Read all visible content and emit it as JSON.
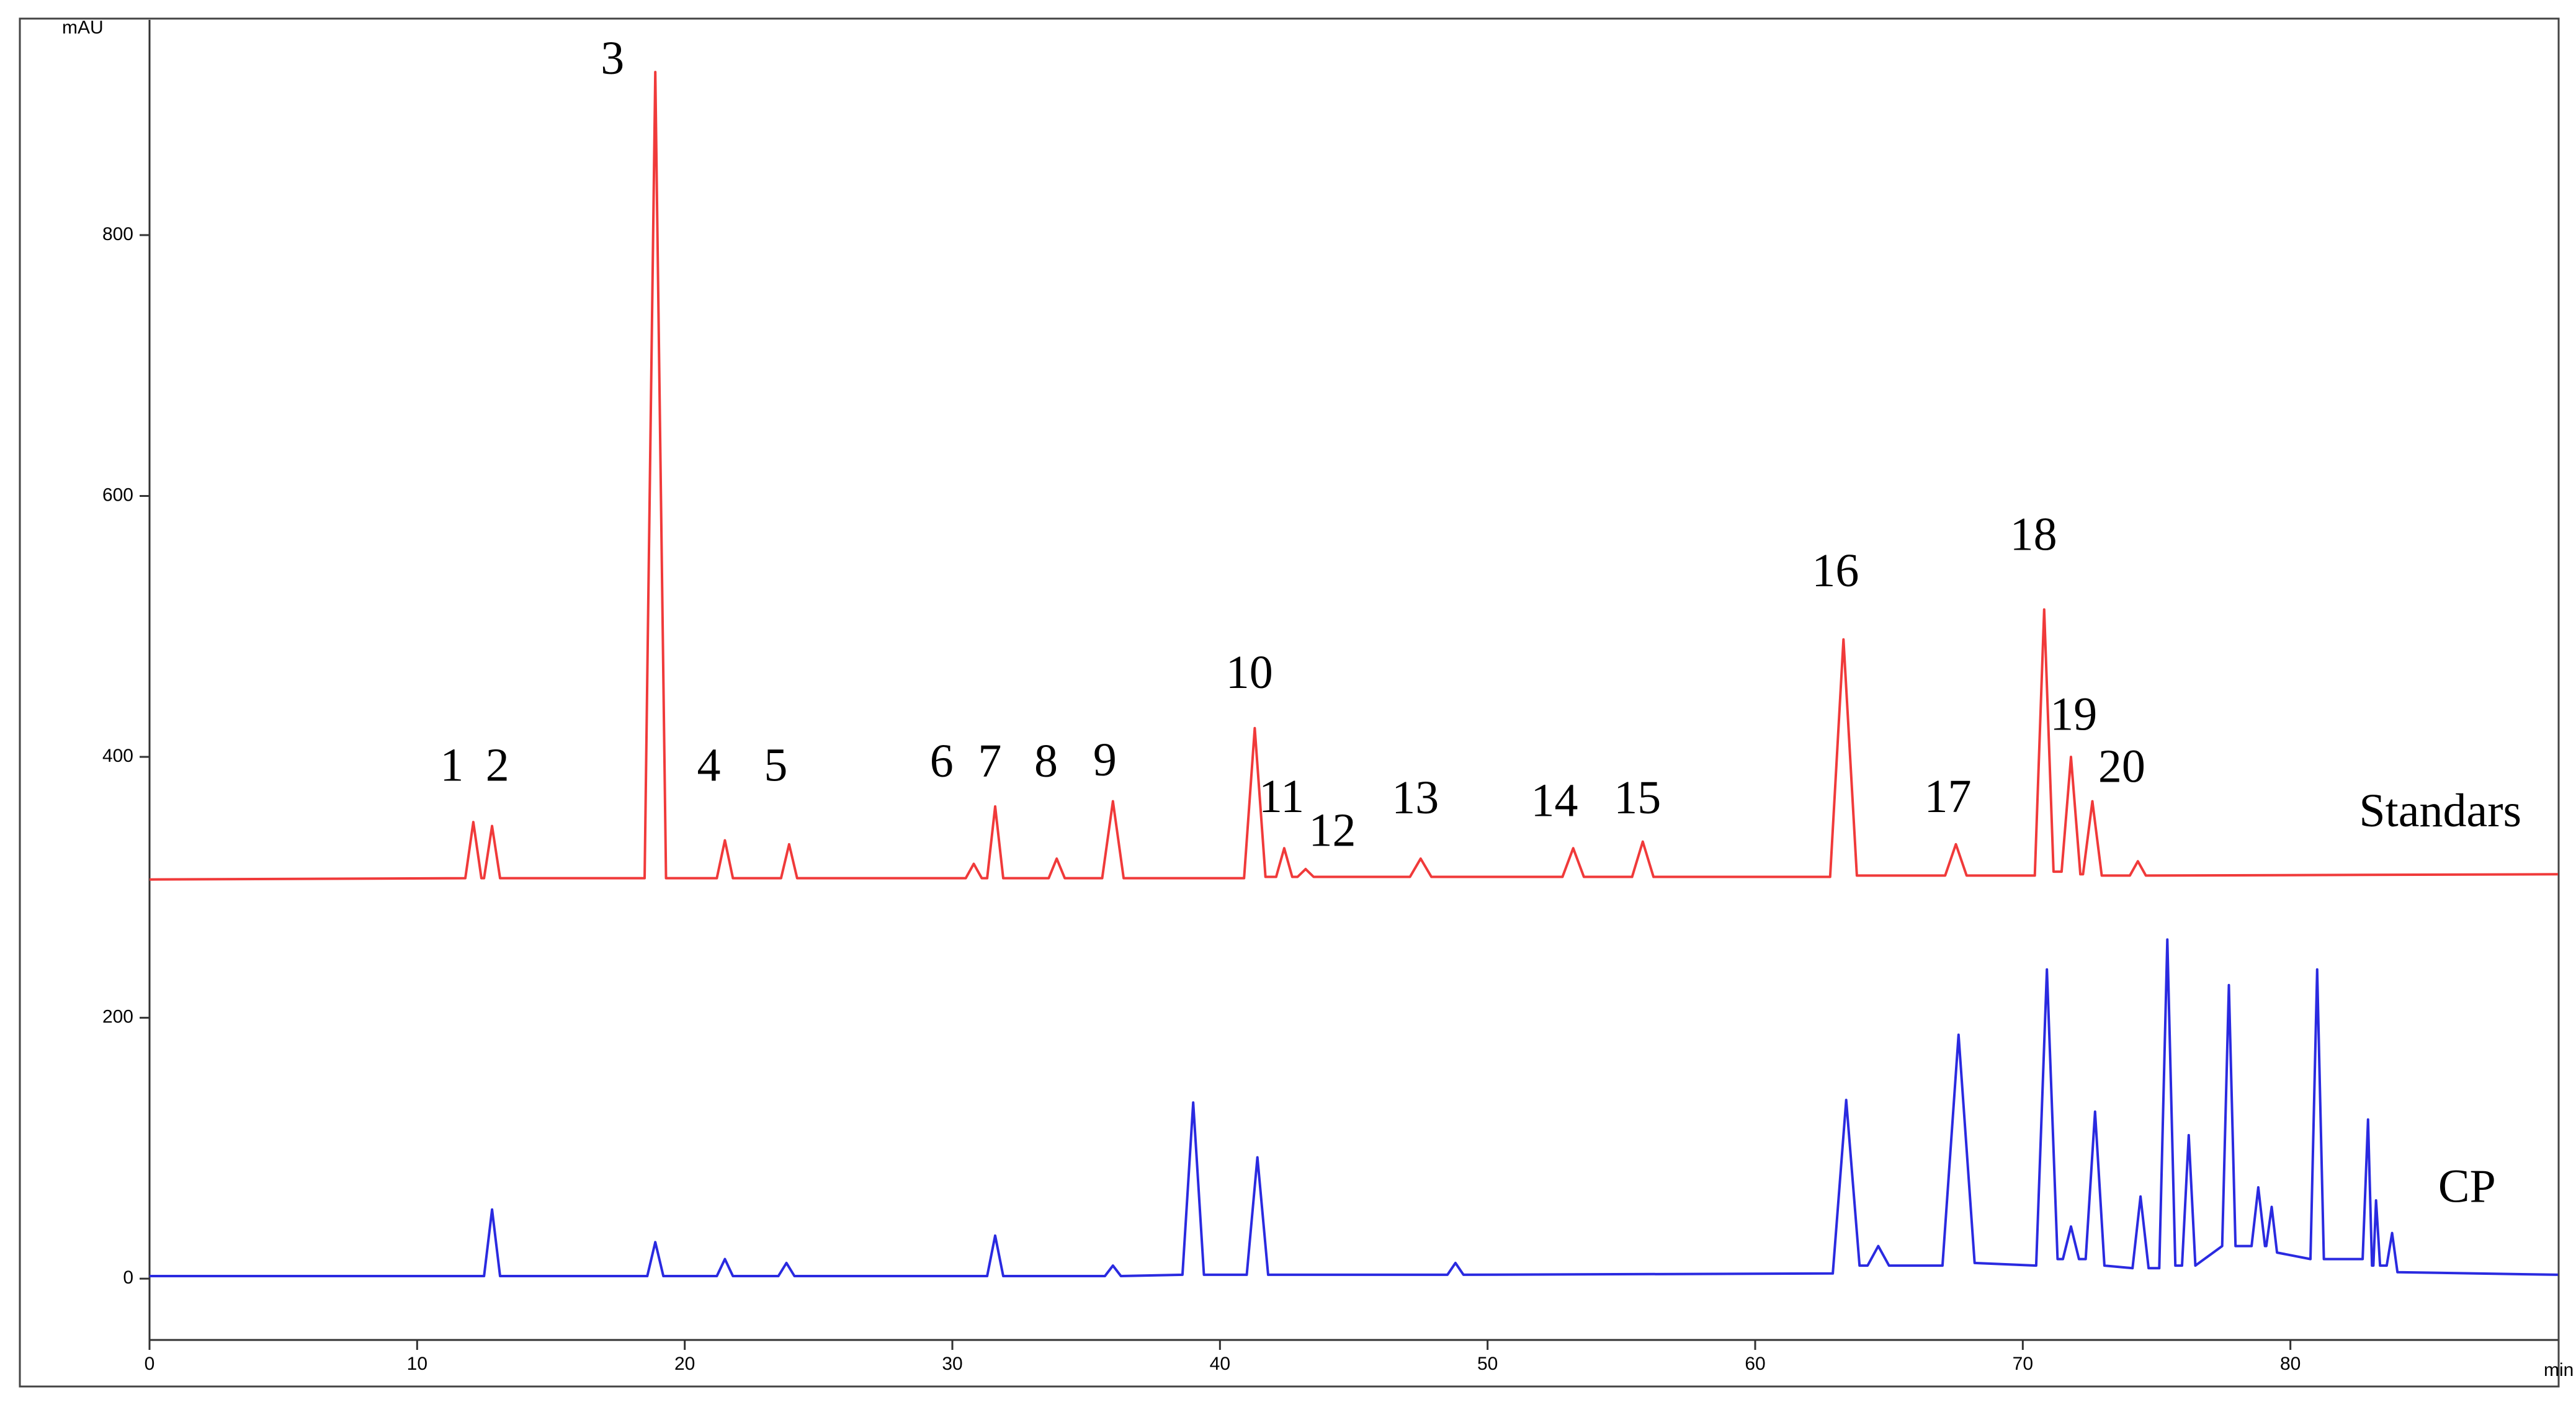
{
  "chart_data": {
    "type": "line",
    "xlabel": "min",
    "ylabel": "mAU",
    "xlim": [
      0,
      90
    ],
    "xticks": [
      0,
      10,
      20,
      30,
      40,
      50,
      60,
      70,
      80
    ],
    "ylim": [
      -47,
      965
    ],
    "yticks": [
      0,
      200,
      400,
      600,
      800
    ],
    "series": [
      {
        "name": "Standars",
        "color": "#f03a3a",
        "x": [
          0,
          11.8,
          12.1,
          12.4,
          12.5,
          12.8,
          13.1,
          18.5,
          18.9,
          19.3,
          21.2,
          21.5,
          21.8,
          23.6,
          23.9,
          24.2,
          30.5,
          30.8,
          31.1,
          31.3,
          31.6,
          31.9,
          33.6,
          33.9,
          34.2,
          35.6,
          36.0,
          36.4,
          40.9,
          41.3,
          41.7,
          42.1,
          42.4,
          42.7,
          42.9,
          43.2,
          43.5,
          47.1,
          47.5,
          47.9,
          52.8,
          53.2,
          53.6,
          55.4,
          55.8,
          56.2,
          62.8,
          63.3,
          63.8,
          67.1,
          67.5,
          67.9,
          70.45,
          70.8,
          71.15,
          71.45,
          71.8,
          72.15,
          72.25,
          72.6,
          72.95,
          74.0,
          74.3,
          74.6,
          90
        ],
        "values": [
          306,
          307,
          350,
          307,
          307,
          347,
          307,
          307,
          925,
          307,
          307,
          336,
          307,
          307,
          333,
          307,
          307,
          318,
          307,
          307,
          362,
          307,
          307,
          322,
          307,
          307,
          366,
          307,
          307,
          422,
          308,
          308,
          330,
          308,
          308,
          314,
          308,
          308,
          322,
          308,
          308,
          330,
          308,
          308,
          335,
          308,
          308,
          490,
          309,
          309,
          333,
          309,
          309,
          513,
          312,
          312,
          400,
          310,
          310,
          366,
          309,
          309,
          320,
          309,
          310
        ]
      },
      {
        "name": "CP",
        "color": "#2a2ae0",
        "x": [
          0,
          12.5,
          12.8,
          13.1,
          18.6,
          18.9,
          19.2,
          21.2,
          21.5,
          21.8,
          23.5,
          23.8,
          24.1,
          31.3,
          31.6,
          31.9,
          35.7,
          36.0,
          36.3,
          38.6,
          39.0,
          39.4,
          41.0,
          41.4,
          41.8,
          48.5,
          48.8,
          49.1,
          62.9,
          63.4,
          63.9,
          64.2,
          64.6,
          65.0,
          67.0,
          67.6,
          68.2,
          70.5,
          70.9,
          71.3,
          71.5,
          71.8,
          72.1,
          72.35,
          72.7,
          73.05,
          74.1,
          74.4,
          74.7,
          75.1,
          75.4,
          75.7,
          75.95,
          76.2,
          76.45,
          77.45,
          77.7,
          77.95,
          78.55,
          78.8,
          79.05,
          79.1,
          79.3,
          79.5,
          80.75,
          81.0,
          81.25,
          82.7,
          82.9,
          83.05,
          83.1,
          83.2,
          83.35,
          83.6,
          83.8,
          84.0,
          90
        ],
        "values": [
          2,
          2,
          53,
          2,
          2,
          28,
          2,
          2,
          15,
          2,
          2,
          12,
          2,
          2,
          33,
          2,
          2,
          10,
          2,
          3,
          135,
          3,
          3,
          93,
          3,
          3,
          12,
          3,
          4,
          137,
          10,
          10,
          25,
          10,
          10,
          187,
          12,
          10,
          237,
          15,
          15,
          40,
          15,
          15,
          128,
          10,
          8,
          63,
          8,
          8,
          260,
          10,
          10,
          110,
          10,
          25,
          225,
          25,
          25,
          70,
          25,
          25,
          55,
          20,
          15,
          237,
          15,
          15,
          122,
          10,
          10,
          60,
          10,
          10,
          35,
          5,
          3
        ]
      }
    ],
    "annotations": [
      {
        "text": "1",
        "x": 11.3,
        "y": 390
      },
      {
        "text": "2",
        "x": 13.0,
        "y": 390
      },
      {
        "text": "3",
        "x": 17.3,
        "y": 932
      },
      {
        "text": "4",
        "x": 20.9,
        "y": 390
      },
      {
        "text": "5",
        "x": 23.4,
        "y": 390
      },
      {
        "text": "6",
        "x": 29.6,
        "y": 393
      },
      {
        "text": "7",
        "x": 31.4,
        "y": 393
      },
      {
        "text": "8",
        "x": 33.5,
        "y": 393
      },
      {
        "text": "9",
        "x": 35.7,
        "y": 394
      },
      {
        "text": "10",
        "x": 41.1,
        "y": 461
      },
      {
        "text": "11",
        "x": 42.3,
        "y": 366
      },
      {
        "text": "12",
        "x": 44.2,
        "y": 340
      },
      {
        "text": "13",
        "x": 47.3,
        "y": 365
      },
      {
        "text": "14",
        "x": 52.5,
        "y": 363
      },
      {
        "text": "15",
        "x": 55.6,
        "y": 365
      },
      {
        "text": "16",
        "x": 63.0,
        "y": 539
      },
      {
        "text": "17",
        "x": 67.2,
        "y": 366
      },
      {
        "text": "18",
        "x": 70.4,
        "y": 567
      },
      {
        "text": "19",
        "x": 71.9,
        "y": 429
      },
      {
        "text": "20",
        "x": 73.7,
        "y": 389
      },
      {
        "text": "Standars",
        "x": 85.6,
        "y": 355
      },
      {
        "text": "CP",
        "x": 86.6,
        "y": 67
      }
    ]
  }
}
